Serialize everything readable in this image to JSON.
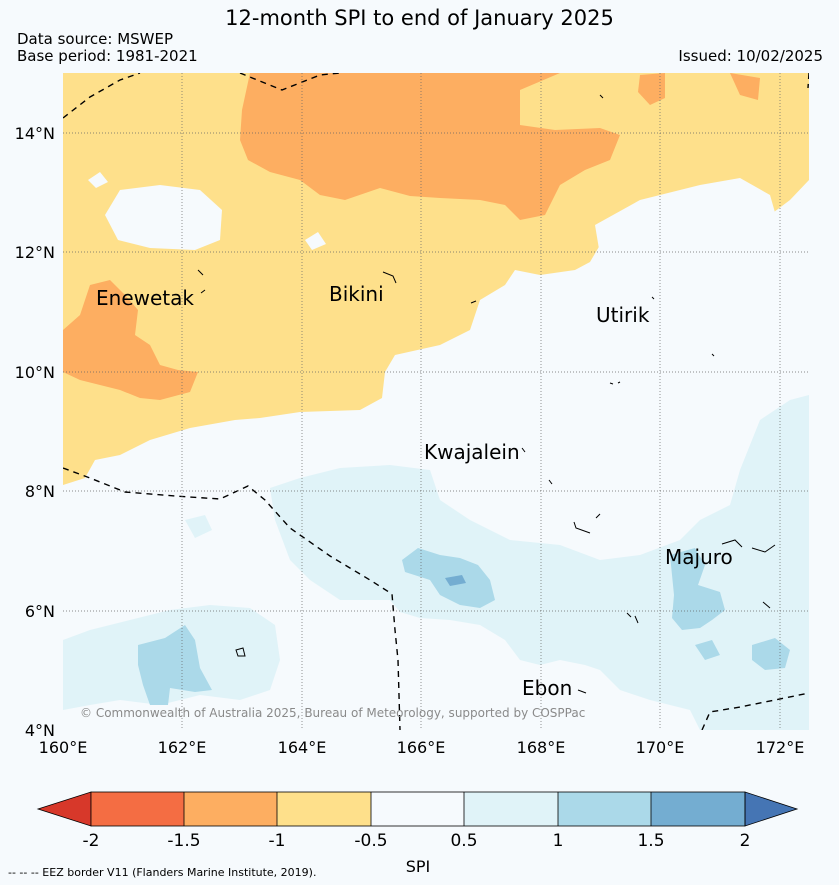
{
  "header": {
    "title": "12-month SPI to end of January 2025",
    "data_source": "Data source: MSWEP",
    "base_period": "Base period: 1981-2021",
    "issued": "Issued: 10/02/2025"
  },
  "map": {
    "lon_range": [
      160,
      172.5
    ],
    "lat_range": [
      4,
      15
    ],
    "lat_labels": [
      "14°N",
      "12°N",
      "10°N",
      "8°N",
      "6°N",
      "4°N"
    ],
    "lon_labels": [
      "160°E",
      "162°E",
      "164°E",
      "166°E",
      "168°E",
      "170°E",
      "172°E"
    ],
    "places": [
      "Enewetak",
      "Bikini",
      "Utirik",
      "Kwajalein",
      "Majuro",
      "Ebon"
    ],
    "copyright": "© Commonwealth of Australia 2025, Bureau of Meteorology, supported by COSPPac"
  },
  "colorbar": {
    "label": "SPI",
    "ticks": [
      "-2",
      "-1.5",
      "-1",
      "-0.5",
      "0.5",
      "1",
      "1.5",
      "2"
    ],
    "colors": {
      "below_-2": "#d7382a",
      "-2_-1.5": "#f46d43",
      "-1.5_-1": "#fdae61",
      "-1_-0.5": "#fee08b",
      "-0.5_0.5": "#f6fafd",
      "0.5_1": "#e0f3f8",
      "1_1.5": "#abd9e9",
      "1.5_2": "#74add1",
      "above_2": "#4575b4"
    }
  },
  "footnote": "--  --  -- EEZ border V11 (Flanders Marine Institute, 2019)."
}
